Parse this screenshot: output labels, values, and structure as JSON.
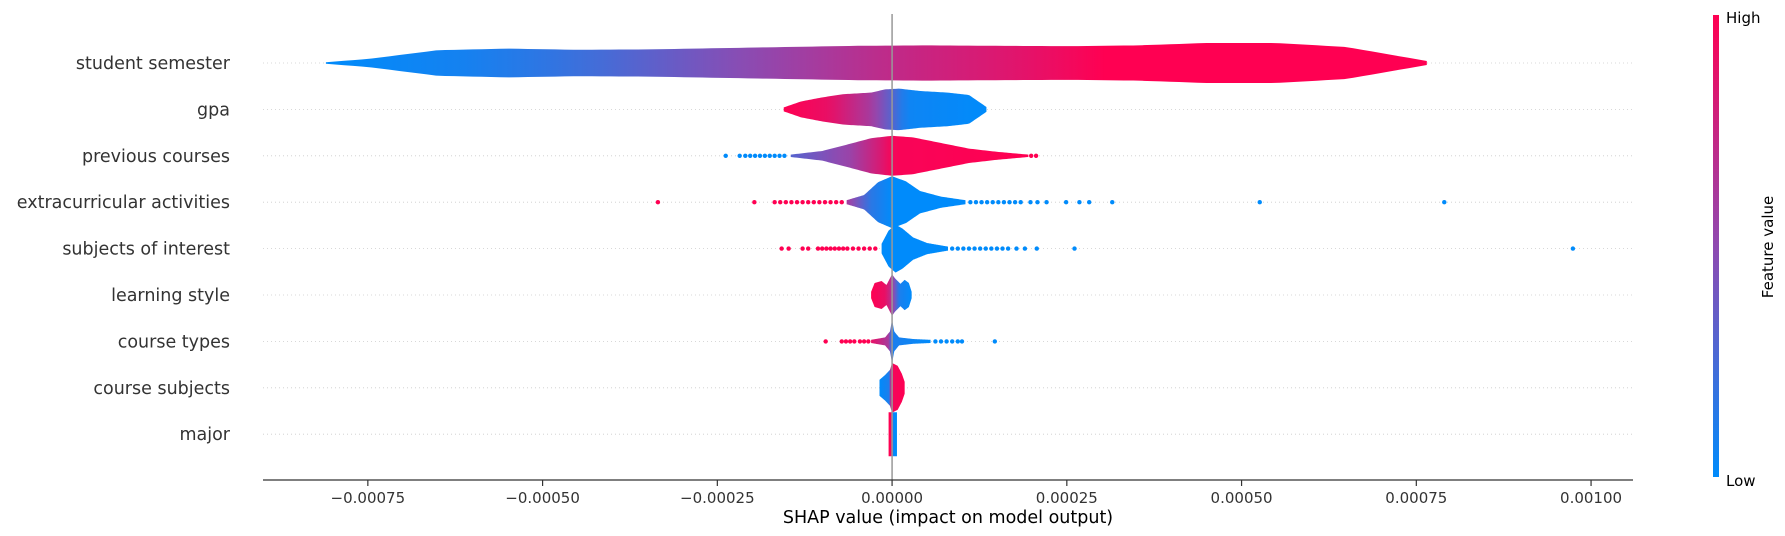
{
  "chart_data": {
    "type": "violin",
    "xlabel": "SHAP value (impact on model output)",
    "xlim": [
      -0.0009,
      0.00106
    ],
    "x_ticks": [
      -0.00075,
      -0.0005,
      -0.00025,
      0.0,
      0.00025,
      0.0005,
      0.00075,
      0.001
    ],
    "x_tick_labels": [
      "−0.00075",
      "−0.00050",
      "−0.00025",
      "0.00000",
      "0.00025",
      "0.00050",
      "0.00075",
      "0.00100"
    ],
    "colorbar": {
      "label": "Feature value",
      "high_label": "High",
      "low_label": "Low",
      "high_color": "#ff0052",
      "low_color": "#008bfb"
    },
    "features": [
      {
        "name": "student semester",
        "range": [
          -0.00081,
          0.000765
        ],
        "width": [
          [
            -0.00081,
            0.02
          ],
          [
            -0.00075,
            0.1
          ],
          [
            -0.00065,
            0.32
          ],
          [
            -0.00055,
            0.36
          ],
          [
            -0.00045,
            0.33
          ],
          [
            -0.00035,
            0.34
          ],
          [
            -0.00025,
            0.37
          ],
          [
            -0.00015,
            0.4
          ],
          [
            -5e-05,
            0.43
          ],
          [
            5e-05,
            0.44
          ],
          [
            0.00015,
            0.43
          ],
          [
            0.00025,
            0.42
          ],
          [
            0.00035,
            0.44
          ],
          [
            0.00045,
            0.5
          ],
          [
            0.00055,
            0.5
          ],
          [
            0.00065,
            0.4
          ],
          [
            0.000765,
            0.05
          ]
        ],
        "color": [
          [
            -0.00081,
            0.0
          ],
          [
            -0.0006,
            0.08
          ],
          [
            -0.00045,
            0.2
          ],
          [
            -0.0002,
            0.5
          ],
          [
            0.0,
            0.72
          ],
          [
            0.0002,
            0.88
          ],
          [
            0.0003,
            1.0
          ],
          [
            0.000765,
            1.0
          ]
        ],
        "outliers": []
      },
      {
        "name": "gpa",
        "range": [
          -0.000155,
          0.000135
        ],
        "width": [
          [
            -0.000155,
            0.05
          ],
          [
            -0.00013,
            0.2
          ],
          [
            -0.0001,
            0.3
          ],
          [
            -7e-05,
            0.38
          ],
          [
            -3e-05,
            0.42
          ],
          [
            -1e-05,
            0.5
          ],
          [
            1e-05,
            0.52
          ],
          [
            4e-05,
            0.46
          ],
          [
            8e-05,
            0.42
          ],
          [
            0.00011,
            0.36
          ],
          [
            0.000135,
            0.06
          ]
        ],
        "color": [
          [
            -0.000155,
            1.0
          ],
          [
            -9e-05,
            0.9
          ],
          [
            -3e-05,
            0.6
          ],
          [
            0.0,
            0.3
          ],
          [
            2e-05,
            0.05
          ],
          [
            0.000135,
            0.0
          ]
        ],
        "outliers": []
      },
      {
        "name": "previous courses",
        "range": [
          -0.000145,
          0.000195
        ],
        "width": [
          [
            -0.000145,
            0.03
          ],
          [
            -0.0001,
            0.12
          ],
          [
            -6e-05,
            0.3
          ],
          [
            -3e-05,
            0.44
          ],
          [
            0.0,
            0.5
          ],
          [
            3e-05,
            0.46
          ],
          [
            7e-05,
            0.32
          ],
          [
            0.00011,
            0.18
          ],
          [
            0.00015,
            0.1
          ],
          [
            0.000195,
            0.03
          ]
        ],
        "color": [
          [
            -0.000145,
            0.3
          ],
          [
            -6e-05,
            0.55
          ],
          [
            -2e-05,
            0.8
          ],
          [
            0.0,
            0.97
          ],
          [
            0.000195,
            1.0
          ]
        ],
        "outliers": [
          {
            "x": -0.000238,
            "c": 0.0
          },
          {
            "x": -0.000218,
            "c": 0.0
          },
          {
            "x": -0.00021,
            "c": 0.0
          },
          {
            "x": -0.000203,
            "c": 0.0
          },
          {
            "x": -0.000196,
            "c": 0.0
          },
          {
            "x": -0.000189,
            "c": 0.0
          },
          {
            "x": -0.000182,
            "c": 0.0
          },
          {
            "x": -0.000175,
            "c": 0.0
          },
          {
            "x": -0.000168,
            "c": 0.0
          },
          {
            "x": -0.000161,
            "c": 0.0
          },
          {
            "x": -0.000154,
            "c": 0.0
          },
          {
            "x": 0.000199,
            "c": 1.0
          },
          {
            "x": 0.000206,
            "c": 1.0
          }
        ]
      },
      {
        "name": "extracurricular activities",
        "range": [
          -6.5e-05,
          0.000105
        ],
        "width": [
          [
            -6.5e-05,
            0.05
          ],
          [
            -4e-05,
            0.18
          ],
          [
            -2e-05,
            0.5
          ],
          [
            0.0,
            0.65
          ],
          [
            2e-05,
            0.52
          ],
          [
            4e-05,
            0.28
          ],
          [
            7e-05,
            0.14
          ],
          [
            0.000105,
            0.05
          ]
        ],
        "color": [
          [
            -6.5e-05,
            0.6
          ],
          [
            -3e-05,
            0.15
          ],
          [
            0.0,
            0.0
          ],
          [
            0.000105,
            0.0
          ]
        ],
        "outliers": [
          {
            "x": -0.000335,
            "c": 1.0
          },
          {
            "x": -0.000197,
            "c": 1.0
          },
          {
            "x": -0.000168,
            "c": 1.0
          },
          {
            "x": -0.00016,
            "c": 1.0
          },
          {
            "x": -0.000152,
            "c": 1.0
          },
          {
            "x": -0.000144,
            "c": 1.0
          },
          {
            "x": -0.000136,
            "c": 1.0
          },
          {
            "x": -0.000128,
            "c": 1.0
          },
          {
            "x": -0.00012,
            "c": 1.0
          },
          {
            "x": -0.000112,
            "c": 1.0
          },
          {
            "x": -0.000104,
            "c": 1.0
          },
          {
            "x": -9.6e-05,
            "c": 1.0
          },
          {
            "x": -8.8e-05,
            "c": 1.0
          },
          {
            "x": -8e-05,
            "c": 1.0
          },
          {
            "x": -7.2e-05,
            "c": 1.0
          },
          {
            "x": 0.000112,
            "c": 0.0
          },
          {
            "x": 0.00012,
            "c": 0.0
          },
          {
            "x": 0.000128,
            "c": 0.0
          },
          {
            "x": 0.000136,
            "c": 0.0
          },
          {
            "x": 0.000144,
            "c": 0.0
          },
          {
            "x": 0.000152,
            "c": 0.0
          },
          {
            "x": 0.00016,
            "c": 0.0
          },
          {
            "x": 0.000168,
            "c": 0.0
          },
          {
            "x": 0.000176,
            "c": 0.0
          },
          {
            "x": 0.000184,
            "c": 0.0
          },
          {
            "x": 0.000198,
            "c": 0.0
          },
          {
            "x": 0.000208,
            "c": 0.0
          },
          {
            "x": 0.000221,
            "c": 0.0
          },
          {
            "x": 0.000249,
            "c": 0.0
          },
          {
            "x": 0.000268,
            "c": 0.0
          },
          {
            "x": 0.000282,
            "c": 0.0
          },
          {
            "x": 0.000315,
            "c": 0.0
          },
          {
            "x": 0.000526,
            "c": 0.0
          },
          {
            "x": 0.00079,
            "c": 0.0
          }
        ]
      },
      {
        "name": "subjects of interest",
        "range": [
          -1.5e-05,
          8e-05
        ],
        "width": [
          [
            -1.5e-05,
            0.12
          ],
          [
            -5e-06,
            0.45
          ],
          [
            5e-06,
            0.6
          ],
          [
            1.5e-05,
            0.5
          ],
          [
            3e-05,
            0.28
          ],
          [
            5e-05,
            0.14
          ],
          [
            8e-05,
            0.05
          ]
        ],
        "color": [
          [
            -1.5e-05,
            0.0
          ],
          [
            8e-05,
            0.0
          ]
        ],
        "outliers": [
          {
            "x": -0.000158,
            "c": 1.0
          },
          {
            "x": -0.000148,
            "c": 1.0
          },
          {
            "x": -0.000128,
            "c": 1.0
          },
          {
            "x": -0.00012,
            "c": 1.0
          },
          {
            "x": -0.000106,
            "c": 1.0
          },
          {
            "x": -0.0001,
            "c": 1.0
          },
          {
            "x": -9.4e-05,
            "c": 1.0
          },
          {
            "x": -8.8e-05,
            "c": 1.0
          },
          {
            "x": -8.2e-05,
            "c": 1.0
          },
          {
            "x": -7.6e-05,
            "c": 1.0
          },
          {
            "x": -7e-05,
            "c": 1.0
          },
          {
            "x": -6.4e-05,
            "c": 1.0
          },
          {
            "x": -5.6e-05,
            "c": 1.0
          },
          {
            "x": -4.8e-05,
            "c": 1.0
          },
          {
            "x": -4e-05,
            "c": 1.0
          },
          {
            "x": -3.2e-05,
            "c": 1.0
          },
          {
            "x": -2.4e-05,
            "c": 1.0
          },
          {
            "x": 8.6e-05,
            "c": 0.0
          },
          {
            "x": 9.4e-05,
            "c": 0.0
          },
          {
            "x": 0.000102,
            "c": 0.0
          },
          {
            "x": 0.00011,
            "c": 0.0
          },
          {
            "x": 0.000118,
            "c": 0.0
          },
          {
            "x": 0.000126,
            "c": 0.0
          },
          {
            "x": 0.000134,
            "c": 0.0
          },
          {
            "x": 0.000142,
            "c": 0.0
          },
          {
            "x": 0.00015,
            "c": 0.0
          },
          {
            "x": 0.000158,
            "c": 0.0
          },
          {
            "x": 0.000166,
            "c": 0.0
          },
          {
            "x": 0.000178,
            "c": 0.0
          },
          {
            "x": 0.00019,
            "c": 0.0
          },
          {
            "x": 0.000207,
            "c": 0.0
          },
          {
            "x": 0.000261,
            "c": 0.0
          },
          {
            "x": 0.000974,
            "c": 0.0
          }
        ]
      },
      {
        "name": "learning style",
        "range": [
          -3e-05,
          2.8e-05
        ],
        "width": [
          [
            -3e-05,
            0.08
          ],
          [
            -2.5e-05,
            0.3
          ],
          [
            -1.5e-05,
            0.35
          ],
          [
            -8e-06,
            0.25
          ],
          [
            -3e-06,
            0.42
          ],
          [
            0.0,
            0.52
          ],
          [
            4e-06,
            0.42
          ],
          [
            1.2e-05,
            0.28
          ],
          [
            1.8e-05,
            0.38
          ],
          [
            2.4e-05,
            0.3
          ],
          [
            2.8e-05,
            0.08
          ]
        ],
        "color": [
          [
            -3e-05,
            1.0
          ],
          [
            -1e-05,
            0.9
          ],
          [
            -2e-06,
            0.7
          ],
          [
            4e-06,
            0.4
          ],
          [
            1e-05,
            0.1
          ],
          [
            2.8e-05,
            0.0
          ]
        ],
        "outliers": []
      },
      {
        "name": "course types",
        "range": [
          -3e-05,
          5.5e-05
        ],
        "width": [
          [
            -3e-05,
            0.04
          ],
          [
            -1e-05,
            0.1
          ],
          [
            -3e-06,
            0.25
          ],
          [
            0.0,
            0.55
          ],
          [
            3e-06,
            0.25
          ],
          [
            1e-05,
            0.1
          ],
          [
            3e-05,
            0.06
          ],
          [
            5.5e-05,
            0.04
          ]
        ],
        "color": [
          [
            -3e-05,
            0.9
          ],
          [
            -5e-06,
            0.6
          ],
          [
            0.0,
            0.1
          ],
          [
            5.5e-05,
            0.0
          ]
        ],
        "outliers": [
          {
            "x": -9.5e-05,
            "c": 1.0
          },
          {
            "x": -7.2e-05,
            "c": 1.0
          },
          {
            "x": -6.6e-05,
            "c": 1.0
          },
          {
            "x": -6e-05,
            "c": 1.0
          },
          {
            "x": -5.4e-05,
            "c": 1.0
          },
          {
            "x": -4.6e-05,
            "c": 1.0
          },
          {
            "x": -4e-05,
            "c": 1.0
          },
          {
            "x": -3.4e-05,
            "c": 1.0
          },
          {
            "x": 6.2e-05,
            "c": 0.0
          },
          {
            "x": 7e-05,
            "c": 0.0
          },
          {
            "x": 7.8e-05,
            "c": 0.0
          },
          {
            "x": 8.6e-05,
            "c": 0.0
          },
          {
            "x": 9.4e-05,
            "c": 0.0
          },
          {
            "x": 0.0001,
            "c": 0.0
          },
          {
            "x": 0.000147,
            "c": 0.0
          }
        ]
      },
      {
        "name": "course subjects",
        "range": [
          -1.8e-05,
          1.8e-05
        ],
        "width": [
          [
            -1.8e-05,
            0.2
          ],
          [
            -1e-05,
            0.32
          ],
          [
            -3e-06,
            0.45
          ],
          [
            0.0,
            0.62
          ],
          [
            8e-06,
            0.55
          ],
          [
            1.4e-05,
            0.35
          ],
          [
            1.8e-05,
            0.15
          ]
        ],
        "color": [
          [
            -1.8e-05,
            0.0
          ],
          [
            -4e-06,
            0.1
          ],
          [
            -1e-06,
            0.95
          ],
          [
            1.8e-05,
            1.0
          ]
        ],
        "outliers": []
      },
      {
        "name": "major",
        "range": [
          -5e-06,
          7e-06
        ],
        "width": [
          [
            -5e-06,
            0.55
          ],
          [
            7e-06,
            0.55
          ]
        ],
        "color": [
          [
            -5e-06,
            1.0
          ],
          [
            -2e-06,
            1.0
          ],
          [
            0.0,
            0.6
          ],
          [
            2e-06,
            0.0
          ],
          [
            7e-06,
            0.0
          ]
        ],
        "outliers": []
      }
    ]
  }
}
